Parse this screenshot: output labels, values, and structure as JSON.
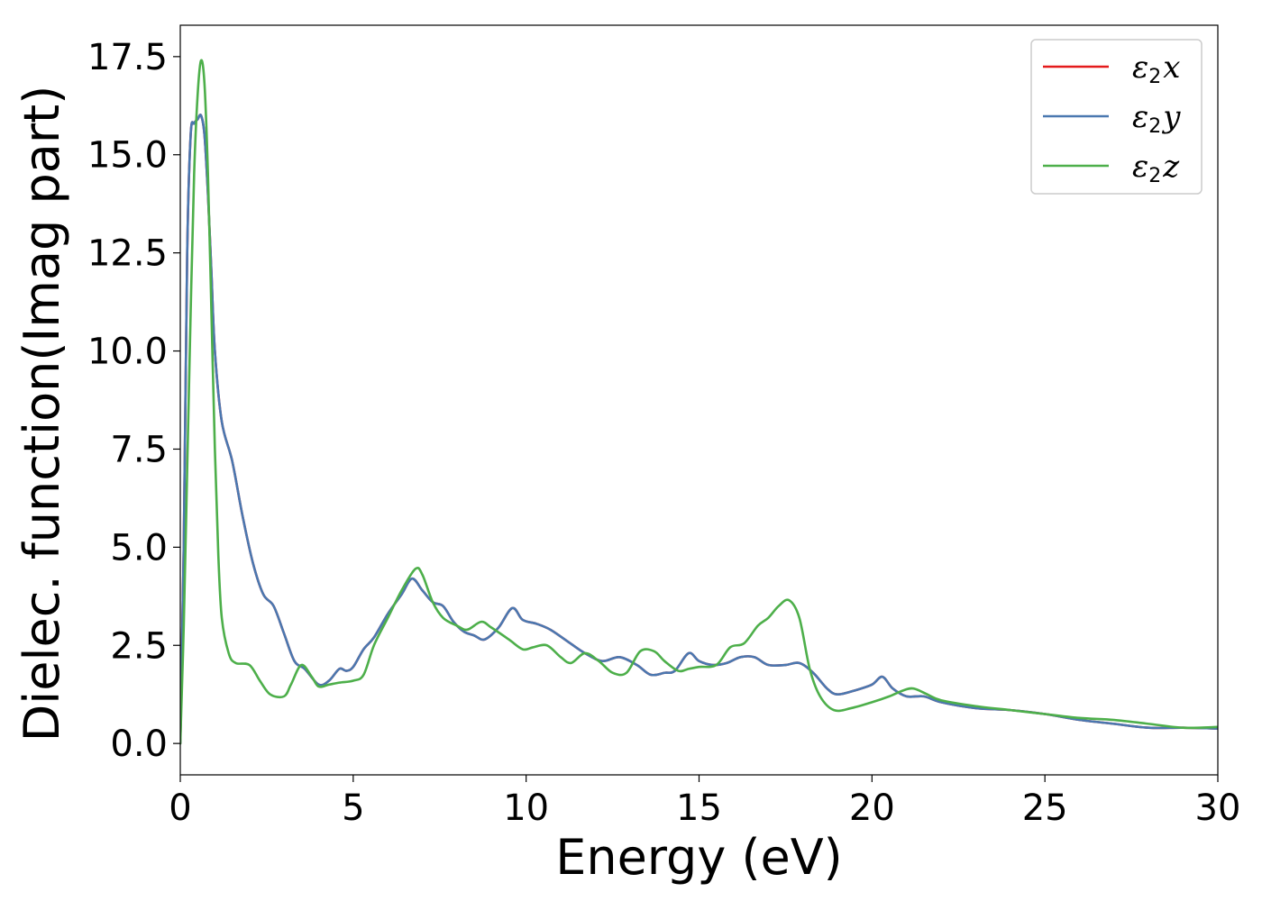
{
  "chart_data": {
    "type": "line",
    "xlabel": "Energy (eV)",
    "ylabel": "Dielec. function(Imag part)",
    "xlim": [
      0,
      30
    ],
    "ylim": [
      -0.8,
      18.3
    ],
    "xticks": [
      0,
      5,
      10,
      15,
      20,
      25,
      30
    ],
    "xtick_labels": [
      "0",
      "5",
      "10",
      "15",
      "20",
      "25",
      "30"
    ],
    "yticks": [
      0.0,
      2.5,
      5.0,
      7.5,
      10.0,
      12.5,
      15.0,
      17.5
    ],
    "ytick_labels": [
      "0.0",
      "2.5",
      "5.0",
      "7.5",
      "10.0",
      "12.5",
      "15.0",
      "17.5"
    ],
    "grid": false,
    "legend_position": "top-right",
    "series": [
      {
        "name": "ε2x",
        "label_base": "ε",
        "label_sub": "2",
        "label_tail": "x",
        "color": "#e41a1c",
        "points": [
          [
            0,
            0.0
          ],
          [
            0.1,
            5.0
          ],
          [
            0.2,
            12.5
          ],
          [
            0.3,
            15.5
          ],
          [
            0.4,
            15.8
          ],
          [
            0.5,
            15.9
          ],
          [
            0.6,
            16.0
          ],
          [
            0.7,
            15.5
          ],
          [
            0.8,
            14.0
          ],
          [
            0.9,
            12.0
          ],
          [
            1.0,
            10.0
          ],
          [
            1.2,
            8.2
          ],
          [
            1.5,
            7.2
          ],
          [
            1.8,
            5.8
          ],
          [
            2.1,
            4.6
          ],
          [
            2.4,
            3.8
          ],
          [
            2.7,
            3.5
          ],
          [
            3.0,
            2.8
          ],
          [
            3.3,
            2.1
          ],
          [
            3.6,
            1.9
          ],
          [
            4.0,
            1.5
          ],
          [
            4.3,
            1.6
          ],
          [
            4.6,
            1.9
          ],
          [
            4.8,
            1.85
          ],
          [
            5.0,
            1.95
          ],
          [
            5.3,
            2.4
          ],
          [
            5.6,
            2.7
          ],
          [
            6.0,
            3.3
          ],
          [
            6.4,
            3.8
          ],
          [
            6.7,
            4.2
          ],
          [
            7.0,
            3.9
          ],
          [
            7.3,
            3.6
          ],
          [
            7.6,
            3.5
          ],
          [
            7.9,
            3.1
          ],
          [
            8.2,
            2.85
          ],
          [
            8.5,
            2.75
          ],
          [
            8.8,
            2.65
          ],
          [
            9.2,
            2.95
          ],
          [
            9.6,
            3.45
          ],
          [
            9.9,
            3.15
          ],
          [
            10.3,
            3.05
          ],
          [
            10.7,
            2.9
          ],
          [
            11.2,
            2.6
          ],
          [
            11.7,
            2.3
          ],
          [
            12.2,
            2.1
          ],
          [
            12.7,
            2.2
          ],
          [
            13.2,
            2.0
          ],
          [
            13.6,
            1.75
          ],
          [
            14.0,
            1.8
          ],
          [
            14.3,
            1.85
          ],
          [
            14.7,
            2.3
          ],
          [
            15.0,
            2.1
          ],
          [
            15.4,
            2.0
          ],
          [
            15.8,
            2.05
          ],
          [
            16.2,
            2.2
          ],
          [
            16.6,
            2.2
          ],
          [
            17.0,
            2.0
          ],
          [
            17.5,
            2.0
          ],
          [
            17.9,
            2.05
          ],
          [
            18.3,
            1.8
          ],
          [
            18.7,
            1.4
          ],
          [
            19.0,
            1.25
          ],
          [
            19.5,
            1.35
          ],
          [
            20.0,
            1.5
          ],
          [
            20.3,
            1.7
          ],
          [
            20.6,
            1.4
          ],
          [
            21.0,
            1.2
          ],
          [
            21.5,
            1.2
          ],
          [
            22.0,
            1.05
          ],
          [
            23.0,
            0.9
          ],
          [
            24.0,
            0.85
          ],
          [
            25.0,
            0.75
          ],
          [
            26.0,
            0.6
          ],
          [
            27.0,
            0.5
          ],
          [
            28.0,
            0.4
          ],
          [
            29.0,
            0.4
          ],
          [
            30.0,
            0.38
          ]
        ]
      },
      {
        "name": "ε2y",
        "label_base": "ε",
        "label_sub": "2",
        "label_tail": "y",
        "color": "#4a78b0",
        "points": [
          [
            0,
            0.0
          ],
          [
            0.1,
            5.0
          ],
          [
            0.2,
            12.5
          ],
          [
            0.3,
            15.5
          ],
          [
            0.4,
            15.8
          ],
          [
            0.5,
            15.9
          ],
          [
            0.6,
            16.0
          ],
          [
            0.7,
            15.5
          ],
          [
            0.8,
            14.0
          ],
          [
            0.9,
            12.0
          ],
          [
            1.0,
            10.0
          ],
          [
            1.2,
            8.2
          ],
          [
            1.5,
            7.2
          ],
          [
            1.8,
            5.8
          ],
          [
            2.1,
            4.6
          ],
          [
            2.4,
            3.8
          ],
          [
            2.7,
            3.5
          ],
          [
            3.0,
            2.8
          ],
          [
            3.3,
            2.1
          ],
          [
            3.6,
            1.9
          ],
          [
            4.0,
            1.5
          ],
          [
            4.3,
            1.6
          ],
          [
            4.6,
            1.9
          ],
          [
            4.8,
            1.85
          ],
          [
            5.0,
            1.95
          ],
          [
            5.3,
            2.4
          ],
          [
            5.6,
            2.7
          ],
          [
            6.0,
            3.3
          ],
          [
            6.4,
            3.8
          ],
          [
            6.7,
            4.2
          ],
          [
            7.0,
            3.9
          ],
          [
            7.3,
            3.6
          ],
          [
            7.6,
            3.5
          ],
          [
            7.9,
            3.1
          ],
          [
            8.2,
            2.85
          ],
          [
            8.5,
            2.75
          ],
          [
            8.8,
            2.65
          ],
          [
            9.2,
            2.95
          ],
          [
            9.6,
            3.45
          ],
          [
            9.9,
            3.15
          ],
          [
            10.3,
            3.05
          ],
          [
            10.7,
            2.9
          ],
          [
            11.2,
            2.6
          ],
          [
            11.7,
            2.3
          ],
          [
            12.2,
            2.1
          ],
          [
            12.7,
            2.2
          ],
          [
            13.2,
            2.0
          ],
          [
            13.6,
            1.75
          ],
          [
            14.0,
            1.8
          ],
          [
            14.3,
            1.85
          ],
          [
            14.7,
            2.3
          ],
          [
            15.0,
            2.1
          ],
          [
            15.4,
            2.0
          ],
          [
            15.8,
            2.05
          ],
          [
            16.2,
            2.2
          ],
          [
            16.6,
            2.2
          ],
          [
            17.0,
            2.0
          ],
          [
            17.5,
            2.0
          ],
          [
            17.9,
            2.05
          ],
          [
            18.3,
            1.8
          ],
          [
            18.7,
            1.4
          ],
          [
            19.0,
            1.25
          ],
          [
            19.5,
            1.35
          ],
          [
            20.0,
            1.5
          ],
          [
            20.3,
            1.7
          ],
          [
            20.6,
            1.4
          ],
          [
            21.0,
            1.2
          ],
          [
            21.5,
            1.2
          ],
          [
            22.0,
            1.05
          ],
          [
            23.0,
            0.9
          ],
          [
            24.0,
            0.85
          ],
          [
            25.0,
            0.75
          ],
          [
            26.0,
            0.6
          ],
          [
            27.0,
            0.5
          ],
          [
            28.0,
            0.4
          ],
          [
            29.0,
            0.4
          ],
          [
            30.0,
            0.38
          ]
        ]
      },
      {
        "name": "ε2z",
        "label_base": "ε",
        "label_sub": "2",
        "label_tail": "z",
        "color": "#4daf4a",
        "points": [
          [
            0,
            0.0
          ],
          [
            0.1,
            3.0
          ],
          [
            0.2,
            7.0
          ],
          [
            0.3,
            11.0
          ],
          [
            0.4,
            14.5
          ],
          [
            0.5,
            16.5
          ],
          [
            0.6,
            17.4
          ],
          [
            0.7,
            16.8
          ],
          [
            0.8,
            14.5
          ],
          [
            0.9,
            11.0
          ],
          [
            1.0,
            7.5
          ],
          [
            1.1,
            4.8
          ],
          [
            1.2,
            3.2
          ],
          [
            1.4,
            2.3
          ],
          [
            1.6,
            2.05
          ],
          [
            2.0,
            2.0
          ],
          [
            2.3,
            1.6
          ],
          [
            2.6,
            1.25
          ],
          [
            3.0,
            1.2
          ],
          [
            3.2,
            1.5
          ],
          [
            3.5,
            2.0
          ],
          [
            3.8,
            1.7
          ],
          [
            4.0,
            1.45
          ],
          [
            4.3,
            1.5
          ],
          [
            4.6,
            1.55
          ],
          [
            5.0,
            1.6
          ],
          [
            5.3,
            1.75
          ],
          [
            5.6,
            2.5
          ],
          [
            6.0,
            3.2
          ],
          [
            6.4,
            3.9
          ],
          [
            6.8,
            4.45
          ],
          [
            7.0,
            4.3
          ],
          [
            7.3,
            3.6
          ],
          [
            7.6,
            3.2
          ],
          [
            8.0,
            3.0
          ],
          [
            8.3,
            2.9
          ],
          [
            8.7,
            3.1
          ],
          [
            9.0,
            2.95
          ],
          [
            9.5,
            2.65
          ],
          [
            9.9,
            2.4
          ],
          [
            10.2,
            2.45
          ],
          [
            10.6,
            2.5
          ],
          [
            11.0,
            2.2
          ],
          [
            11.3,
            2.05
          ],
          [
            11.7,
            2.3
          ],
          [
            12.1,
            2.1
          ],
          [
            12.5,
            1.8
          ],
          [
            12.9,
            1.8
          ],
          [
            13.3,
            2.35
          ],
          [
            13.7,
            2.35
          ],
          [
            14.0,
            2.1
          ],
          [
            14.4,
            1.85
          ],
          [
            14.7,
            1.9
          ],
          [
            15.0,
            1.95
          ],
          [
            15.5,
            2.0
          ],
          [
            15.9,
            2.45
          ],
          [
            16.3,
            2.55
          ],
          [
            16.7,
            3.0
          ],
          [
            17.0,
            3.2
          ],
          [
            17.3,
            3.5
          ],
          [
            17.6,
            3.65
          ],
          [
            17.9,
            3.2
          ],
          [
            18.2,
            1.9
          ],
          [
            18.5,
            1.2
          ],
          [
            18.9,
            0.85
          ],
          [
            19.4,
            0.9
          ],
          [
            20.0,
            1.05
          ],
          [
            20.5,
            1.2
          ],
          [
            20.9,
            1.35
          ],
          [
            21.2,
            1.4
          ],
          [
            21.6,
            1.25
          ],
          [
            22.0,
            1.1
          ],
          [
            23.0,
            0.95
          ],
          [
            24.0,
            0.85
          ],
          [
            25.0,
            0.75
          ],
          [
            26.0,
            0.65
          ],
          [
            27.0,
            0.6
          ],
          [
            28.0,
            0.5
          ],
          [
            29.0,
            0.4
          ],
          [
            30.0,
            0.42
          ]
        ]
      }
    ]
  }
}
